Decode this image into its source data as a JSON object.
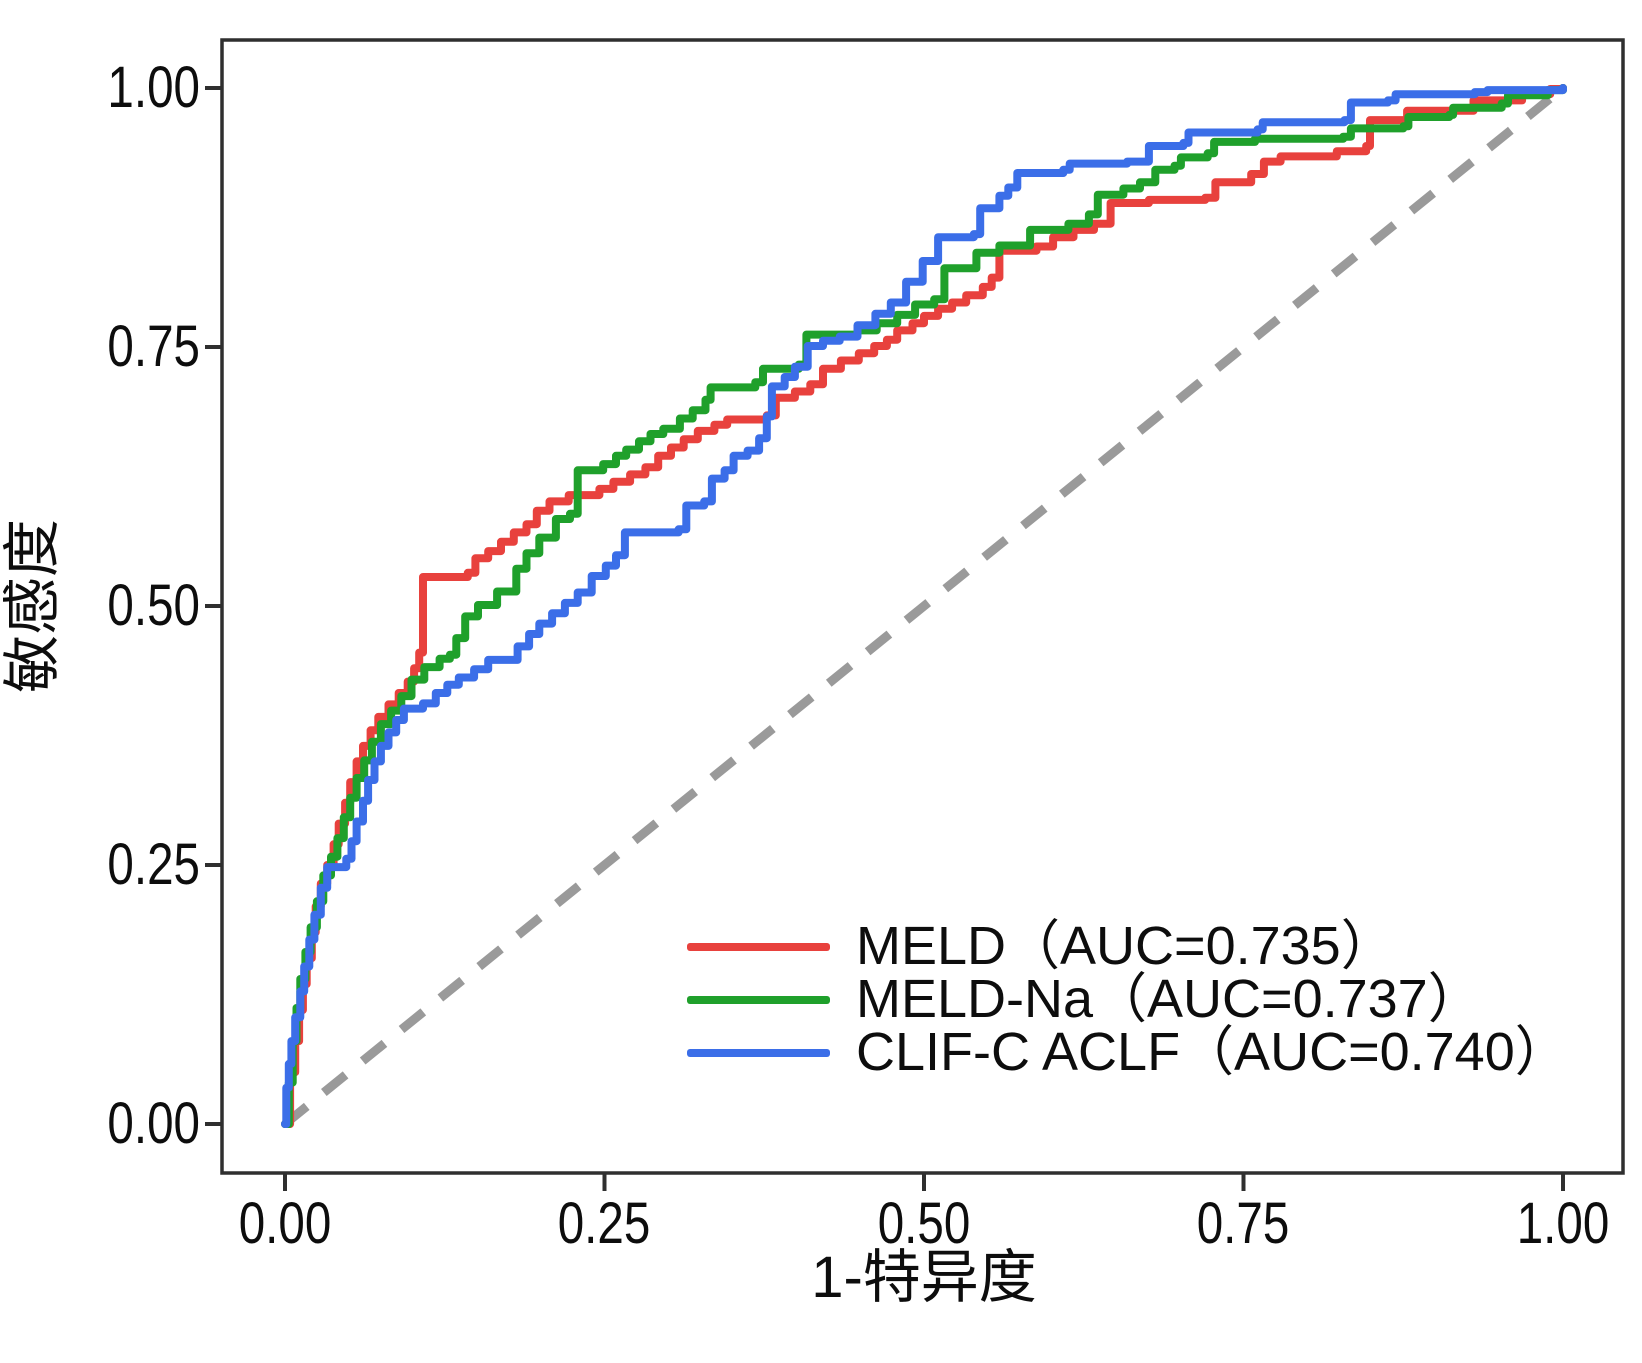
{
  "axes": {
    "x_label": "1-特异度",
    "y_label": "敏感度",
    "x_ticks": [
      "0.00",
      "0.25",
      "0.50",
      "0.75",
      "1.00"
    ],
    "y_ticks": [
      "1.00",
      "0.75",
      "0.50",
      "0.25",
      "0.00"
    ]
  },
  "legend": {
    "items": [
      {
        "label": "MELD（AUC=0.735）",
        "color": "#e8413d"
      },
      {
        "label": "MELD-Na（AUC=0.737）",
        "color": "#1fa02b"
      },
      {
        "label": "CLIF-C ACLF（AUC=0.740）",
        "color": "#3b6ee8"
      }
    ]
  },
  "chart_data": {
    "type": "line",
    "subtype": "roc-step-curves",
    "title": "",
    "xlabel": "1-特异度",
    "ylabel": "敏感度",
    "xlim": [
      0,
      1
    ],
    "ylim": [
      0,
      1
    ],
    "x_tick_values": [
      0,
      0.25,
      0.5,
      0.75,
      1.0
    ],
    "y_tick_values": [
      0,
      0.25,
      0.5,
      0.75,
      1.0
    ],
    "grid": false,
    "legend_position": "lower right",
    "reference_line": {
      "from": [
        0,
        0
      ],
      "to": [
        1,
        1
      ],
      "style": "dashed",
      "color": "#9a9a9a"
    },
    "series": [
      {
        "id": "meld",
        "name": "MELD",
        "auc": 0.735,
        "color": "#e8413d",
        "points": [
          [
            0,
            0
          ],
          [
            0.004,
            0.05
          ],
          [
            0.008,
            0.08
          ],
          [
            0.011,
            0.11
          ],
          [
            0.014,
            0.135
          ],
          [
            0.017,
            0.16
          ],
          [
            0.021,
            0.185
          ],
          [
            0.024,
            0.21
          ],
          [
            0.028,
            0.232
          ],
          [
            0.033,
            0.25
          ],
          [
            0.038,
            0.27
          ],
          [
            0.042,
            0.29
          ],
          [
            0.047,
            0.31
          ],
          [
            0.051,
            0.33
          ],
          [
            0.056,
            0.35
          ],
          [
            0.061,
            0.365
          ],
          [
            0.067,
            0.38
          ],
          [
            0.073,
            0.393
          ],
          [
            0.081,
            0.405
          ],
          [
            0.089,
            0.416
          ],
          [
            0.096,
            0.427
          ],
          [
            0.101,
            0.44
          ],
          [
            0.105,
            0.455
          ],
          [
            0.108,
            0.528
          ],
          [
            0.143,
            0.532
          ],
          [
            0.149,
            0.546
          ],
          [
            0.159,
            0.553
          ],
          [
            0.169,
            0.562
          ],
          [
            0.179,
            0.571
          ],
          [
            0.189,
            0.579
          ],
          [
            0.197,
            0.592
          ],
          [
            0.207,
            0.601
          ],
          [
            0.222,
            0.607
          ],
          [
            0.246,
            0.613
          ],
          [
            0.257,
            0.62
          ],
          [
            0.27,
            0.627
          ],
          [
            0.282,
            0.634
          ],
          [
            0.292,
            0.645
          ],
          [
            0.302,
            0.653
          ],
          [
            0.312,
            0.661
          ],
          [
            0.323,
            0.669
          ],
          [
            0.336,
            0.675
          ],
          [
            0.346,
            0.68
          ],
          [
            0.377,
            0.684
          ],
          [
            0.384,
            0.701
          ],
          [
            0.399,
            0.707
          ],
          [
            0.411,
            0.714
          ],
          [
            0.421,
            0.729
          ],
          [
            0.435,
            0.737
          ],
          [
            0.449,
            0.744
          ],
          [
            0.461,
            0.751
          ],
          [
            0.471,
            0.757
          ],
          [
            0.479,
            0.766
          ],
          [
            0.491,
            0.773
          ],
          [
            0.5,
            0.78
          ],
          [
            0.511,
            0.787
          ],
          [
            0.522,
            0.793
          ],
          [
            0.533,
            0.8
          ],
          [
            0.546,
            0.808
          ],
          [
            0.553,
            0.817
          ],
          [
            0.559,
            0.843
          ],
          [
            0.588,
            0.847
          ],
          [
            0.601,
            0.856
          ],
          [
            0.617,
            0.863
          ],
          [
            0.633,
            0.869
          ],
          [
            0.646,
            0.889
          ],
          [
            0.676,
            0.892
          ],
          [
            0.72,
            0.894
          ],
          [
            0.728,
            0.909
          ],
          [
            0.756,
            0.917
          ],
          [
            0.766,
            0.929
          ],
          [
            0.779,
            0.934
          ],
          [
            0.823,
            0.939
          ],
          [
            0.846,
            0.944
          ],
          [
            0.849,
            0.969
          ],
          [
            0.878,
            0.978
          ],
          [
            0.93,
            0.988
          ],
          [
            0.968,
            0.994
          ],
          [
            0.99,
            0.999
          ],
          [
            1,
            1
          ]
        ]
      },
      {
        "id": "meld-na",
        "name": "MELD-Na",
        "auc": 0.737,
        "color": "#1fa02b",
        "points": [
          [
            0,
            0
          ],
          [
            0.003,
            0.04
          ],
          [
            0.006,
            0.08
          ],
          [
            0.009,
            0.112
          ],
          [
            0.012,
            0.14
          ],
          [
            0.016,
            0.166
          ],
          [
            0.02,
            0.19
          ],
          [
            0.025,
            0.215
          ],
          [
            0.03,
            0.24
          ],
          [
            0.036,
            0.258
          ],
          [
            0.041,
            0.276
          ],
          [
            0.046,
            0.296
          ],
          [
            0.051,
            0.315
          ],
          [
            0.056,
            0.334
          ],
          [
            0.062,
            0.351
          ],
          [
            0.068,
            0.369
          ],
          [
            0.075,
            0.386
          ],
          [
            0.083,
            0.399
          ],
          [
            0.091,
            0.413
          ],
          [
            0.099,
            0.429
          ],
          [
            0.109,
            0.441
          ],
          [
            0.121,
            0.449
          ],
          [
            0.129,
            0.453
          ],
          [
            0.134,
            0.469
          ],
          [
            0.141,
            0.49
          ],
          [
            0.151,
            0.501
          ],
          [
            0.166,
            0.514
          ],
          [
            0.181,
            0.536
          ],
          [
            0.189,
            0.551
          ],
          [
            0.199,
            0.566
          ],
          [
            0.212,
            0.584
          ],
          [
            0.223,
            0.589
          ],
          [
            0.229,
            0.631
          ],
          [
            0.249,
            0.637
          ],
          [
            0.259,
            0.645
          ],
          [
            0.267,
            0.651
          ],
          [
            0.277,
            0.659
          ],
          [
            0.286,
            0.666
          ],
          [
            0.296,
            0.671
          ],
          [
            0.309,
            0.681
          ],
          [
            0.319,
            0.689
          ],
          [
            0.329,
            0.699
          ],
          [
            0.333,
            0.711
          ],
          [
            0.368,
            0.716
          ],
          [
            0.374,
            0.729
          ],
          [
            0.402,
            0.733
          ],
          [
            0.408,
            0.762
          ],
          [
            0.448,
            0.766
          ],
          [
            0.463,
            0.773
          ],
          [
            0.479,
            0.781
          ],
          [
            0.493,
            0.791
          ],
          [
            0.508,
            0.796
          ],
          [
            0.516,
            0.826
          ],
          [
            0.541,
            0.841
          ],
          [
            0.559,
            0.848
          ],
          [
            0.583,
            0.863
          ],
          [
            0.613,
            0.869
          ],
          [
            0.629,
            0.878
          ],
          [
            0.636,
            0.897
          ],
          [
            0.656,
            0.903
          ],
          [
            0.669,
            0.909
          ],
          [
            0.681,
            0.921
          ],
          [
            0.696,
            0.925
          ],
          [
            0.701,
            0.933
          ],
          [
            0.722,
            0.937
          ],
          [
            0.727,
            0.948
          ],
          [
            0.759,
            0.951
          ],
          [
            0.828,
            0.953
          ],
          [
            0.834,
            0.961
          ],
          [
            0.875,
            0.963
          ],
          [
            0.879,
            0.972
          ],
          [
            0.911,
            0.974
          ],
          [
            0.914,
            0.981
          ],
          [
            0.952,
            0.985
          ],
          [
            0.957,
            0.993
          ],
          [
            0.988,
            0.998
          ],
          [
            1,
            1
          ]
        ]
      },
      {
        "id": "clif-c-aclf",
        "name": "CLIF-C ACLF",
        "auc": 0.74,
        "color": "#3b6ee8",
        "points": [
          [
            0,
            0
          ],
          [
            0.001,
            0.035
          ],
          [
            0.003,
            0.058
          ],
          [
            0.005,
            0.08
          ],
          [
            0.008,
            0.103
          ],
          [
            0.012,
            0.128
          ],
          [
            0.015,
            0.152
          ],
          [
            0.019,
            0.178
          ],
          [
            0.023,
            0.202
          ],
          [
            0.028,
            0.228
          ],
          [
            0.033,
            0.248
          ],
          [
            0.048,
            0.256
          ],
          [
            0.052,
            0.273
          ],
          [
            0.056,
            0.292
          ],
          [
            0.061,
            0.312
          ],
          [
            0.065,
            0.332
          ],
          [
            0.07,
            0.35
          ],
          [
            0.075,
            0.365
          ],
          [
            0.081,
            0.378
          ],
          [
            0.087,
            0.39
          ],
          [
            0.093,
            0.401
          ],
          [
            0.108,
            0.406
          ],
          [
            0.118,
            0.416
          ],
          [
            0.127,
            0.424
          ],
          [
            0.136,
            0.431
          ],
          [
            0.148,
            0.439
          ],
          [
            0.159,
            0.448
          ],
          [
            0.182,
            0.461
          ],
          [
            0.191,
            0.473
          ],
          [
            0.199,
            0.483
          ],
          [
            0.209,
            0.493
          ],
          [
            0.219,
            0.503
          ],
          [
            0.229,
            0.513
          ],
          [
            0.24,
            0.529
          ],
          [
            0.251,
            0.539
          ],
          [
            0.259,
            0.549
          ],
          [
            0.266,
            0.571
          ],
          [
            0.308,
            0.574
          ],
          [
            0.314,
            0.597
          ],
          [
            0.328,
            0.601
          ],
          [
            0.334,
            0.623
          ],
          [
            0.344,
            0.631
          ],
          [
            0.351,
            0.645
          ],
          [
            0.362,
            0.65
          ],
          [
            0.371,
            0.662
          ],
          [
            0.377,
            0.683
          ],
          [
            0.381,
            0.712
          ],
          [
            0.391,
            0.721
          ],
          [
            0.399,
            0.731
          ],
          [
            0.409,
            0.751
          ],
          [
            0.421,
            0.756
          ],
          [
            0.434,
            0.76
          ],
          [
            0.448,
            0.771
          ],
          [
            0.462,
            0.782
          ],
          [
            0.474,
            0.793
          ],
          [
            0.486,
            0.813
          ],
          [
            0.499,
            0.833
          ],
          [
            0.511,
            0.856
          ],
          [
            0.539,
            0.859
          ],
          [
            0.544,
            0.884
          ],
          [
            0.559,
            0.896
          ],
          [
            0.566,
            0.904
          ],
          [
            0.573,
            0.918
          ],
          [
            0.609,
            0.921
          ],
          [
            0.614,
            0.927
          ],
          [
            0.659,
            0.929
          ],
          [
            0.676,
            0.944
          ],
          [
            0.703,
            0.947
          ],
          [
            0.707,
            0.957
          ],
          [
            0.761,
            0.96
          ],
          [
            0.765,
            0.967
          ],
          [
            0.829,
            0.969
          ],
          [
            0.834,
            0.986
          ],
          [
            0.863,
            0.988
          ],
          [
            0.869,
            0.994
          ],
          [
            0.931,
            0.996
          ],
          [
            0.941,
            0.998
          ],
          [
            1,
            1
          ]
        ]
      }
    ]
  },
  "style": {
    "axis_color": "#2f2f2f",
    "tick_label_color": "#0d0d0d",
    "background": "#ffffff"
  }
}
